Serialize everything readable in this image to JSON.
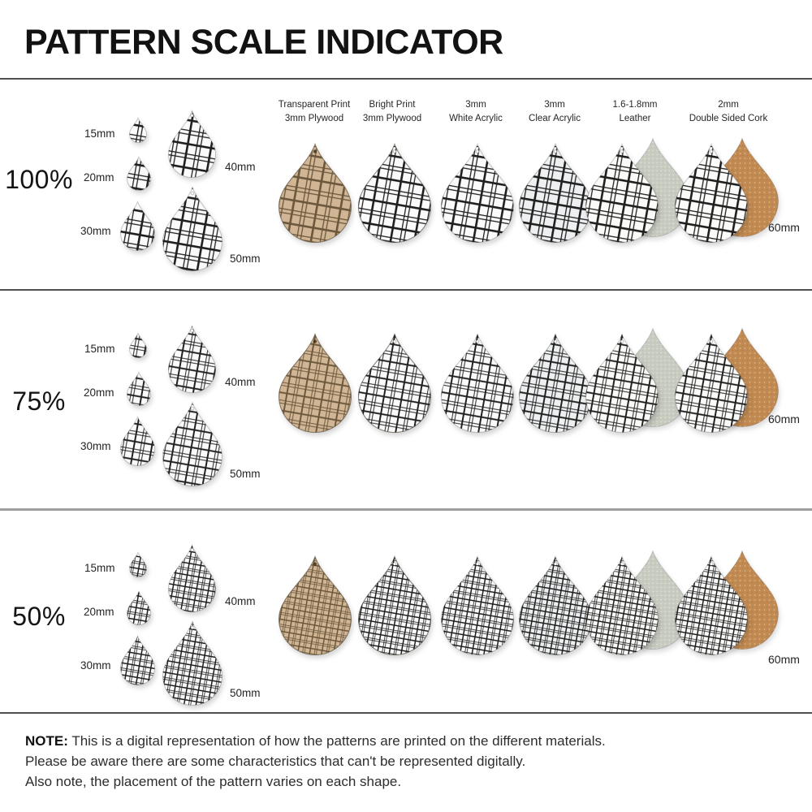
{
  "title": "PATTERN SCALE INDICATOR",
  "rows": [
    {
      "label": "100%",
      "scale": 1.0
    },
    {
      "label": "75%",
      "scale": 0.75
    },
    {
      "label": "50%",
      "scale": 0.5
    }
  ],
  "size_labels": [
    "15mm",
    "20mm",
    "30mm",
    "40mm",
    "50mm"
  ],
  "sixty_label": "60mm",
  "materials": [
    {
      "id": "plywood-transparent",
      "line1": "Transparent Print",
      "line2": "3mm Plywood",
      "base": "plywood",
      "lines": "plywood_lines"
    },
    {
      "id": "plywood-bright",
      "line1": "Bright Print",
      "line2": "3mm Plywood",
      "base": "white",
      "lines": "print"
    },
    {
      "id": "acrylic-white",
      "line1": "3mm",
      "line2": "White Acrylic",
      "base": "white",
      "lines": "print"
    },
    {
      "id": "acrylic-clear",
      "line1": "3mm",
      "line2": "Clear Acrylic",
      "base": "clear",
      "lines": "print"
    },
    {
      "id": "leather",
      "line1": "1.6-1.8mm",
      "line2": "Leather",
      "base": "leather_front",
      "lines": "print",
      "back": "leather_back"
    },
    {
      "id": "cork",
      "line1": "2mm",
      "line2": "Double Sided Cork",
      "base": "cork_front",
      "lines": "print",
      "back": "cork_back"
    }
  ],
  "colors": {
    "plywood": "#d1b695",
    "plywood_lines": "#6b573c",
    "print": "#1f1f1f",
    "white": "#fafafa",
    "clear": "#edeff0",
    "leather_front": "#fafaf8",
    "leather_back": "#c7cbc0",
    "cork_front": "#fbfbfa",
    "cork_back": "#c18a52",
    "divider_dark": "#4f4f4f",
    "divider_light": "#9e9e9e"
  },
  "note": {
    "prefix": "NOTE:",
    "line1": "This is a digital representation of how the patterns are printed on the different materials.",
    "line2": "Please be aware there are some characteristics that can't be represented digitally.",
    "line3": "Also note, the placement of the pattern varies on each shape."
  }
}
